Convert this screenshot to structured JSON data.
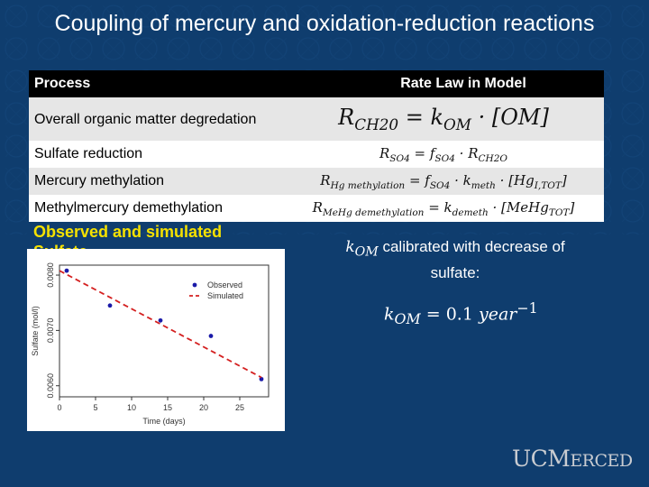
{
  "slide": {
    "title": "Coupling of mercury and oxidation-reduction reactions"
  },
  "table": {
    "headers": {
      "process": "Process",
      "rate": "Rate Law in Model"
    },
    "rows": [
      {
        "process": "Overall organic matter degredation",
        "law_main": "R",
        "law_sub": "CH20",
        "law_rest": " = k",
        "law_sub2": "OM",
        "law_tail": " · [OM]"
      },
      {
        "process": "Sulfate reduction",
        "law_main": "R",
        "law_sub": "SO4",
        "law_rest": " = f",
        "law_sub2": "SO4",
        "law_tail": " · R",
        "law_sub3": "CH2O"
      },
      {
        "process": "Mercury methylation",
        "law_main": "R",
        "law_sub": "Hg methylation",
        "law_rest": " = f",
        "law_sub2": "SO4",
        "law_tail": " · k",
        "law_sub3": "meth",
        "law_tail2": " · [Hg",
        "law_sub4": "I,TOT",
        "law_tail3": "]"
      },
      {
        "process": "Methylmercury demethylation",
        "law_main": "R",
        "law_sub": "MeHg demethylation",
        "law_rest": " = k",
        "law_sub2": "demeth",
        "law_tail": " · [MeHg",
        "law_sub3": "TOT",
        "law_tail2": "]"
      }
    ]
  },
  "plot_section": {
    "label": "Observed and simulated Sulfate"
  },
  "chart_data": {
    "type": "scatter",
    "title": "",
    "xlabel": "Time (days)",
    "ylabel": "Sulfate (mol/l)",
    "xlim": [
      0,
      29
    ],
    "ylim": [
      0.0058,
      0.00818
    ],
    "xticks": [
      "0",
      "5",
      "10",
      "15",
      "20",
      "25"
    ],
    "yticks": [
      "0.0060",
      "0.0070",
      "0.0080"
    ],
    "legend_position": "top-right",
    "series": [
      {
        "name": "Observed",
        "style": "points",
        "color": "#1a1aa8",
        "x": [
          1,
          7,
          14,
          21,
          28
        ],
        "y": [
          0.00808,
          0.00745,
          0.00718,
          0.0069,
          0.00612
        ]
      },
      {
        "name": "Simulated",
        "style": "dashed-line",
        "color": "#d42020",
        "x": [
          0,
          28
        ],
        "y": [
          0.00808,
          0.00615
        ]
      }
    ]
  },
  "note": {
    "kom_symbol": "k",
    "kom_sub": "OM",
    "text": " calibrated with decrease of sulfate:",
    "eq_k": "k",
    "eq_sub": "OM",
    "eq_rest": " = 0.1 ",
    "eq_unit": "year",
    "eq_exp": "−1"
  },
  "logo": {
    "part1": "UC",
    "part2": "M",
    "part3": "ERCED"
  }
}
